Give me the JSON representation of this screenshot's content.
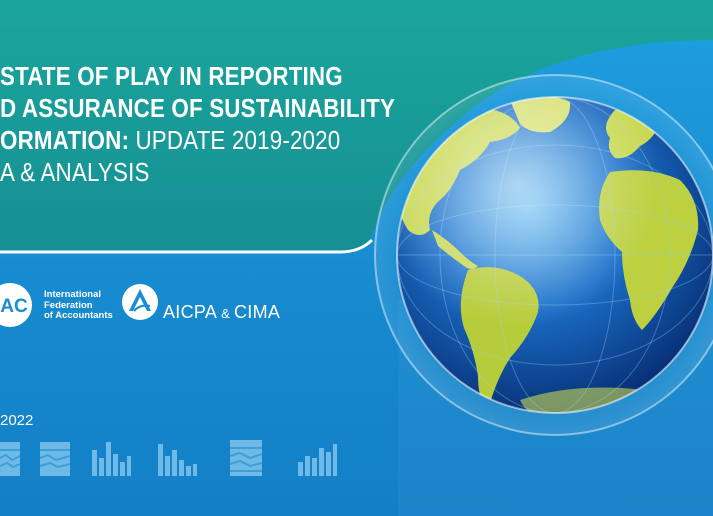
{
  "title": {
    "line1": "STATE OF PLAY IN REPORTING",
    "line2": "D ASSURANCE OF SUSTAINABILITY",
    "line3_bold": "ORMATION:",
    "line3_normal": " UPDATE 2019-2020",
    "line4": "A & ANALYSIS"
  },
  "ifac": {
    "mark": "AC",
    "name_lines": [
      "International",
      "Federation",
      "of Accountants"
    ]
  },
  "aicpa": {
    "name": "AICPA",
    "amp": " & ",
    "cima": "CIMA"
  },
  "year": "2022",
  "colors": {
    "teal": "#1aa59a",
    "blue": "#1a8ed0",
    "globe_land": "#c7d650",
    "globe_ocean": "#0f4fa0"
  },
  "icons": [
    "line-chart-icon",
    "bar-chart-icon",
    "bar-chart-icon",
    "line-chart-icon",
    "bar-chart-icon"
  ]
}
